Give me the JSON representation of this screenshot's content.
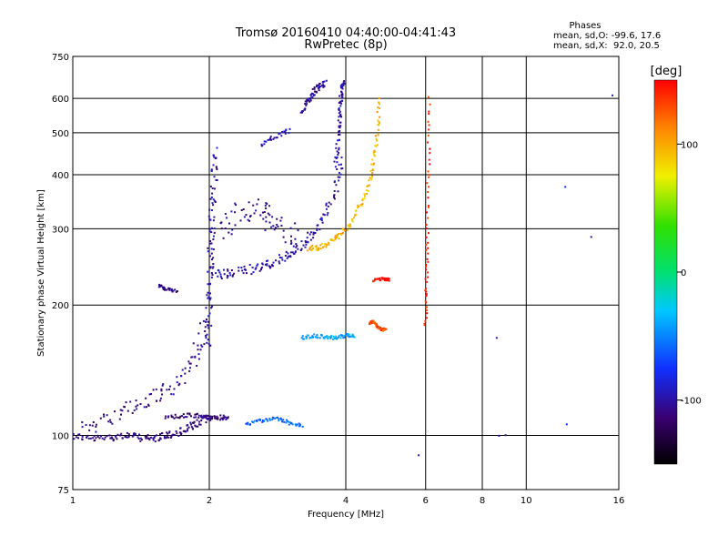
{
  "chart_data": {
    "type": "scatter",
    "title": "Tromsø 20160410 04:40:00-04:41:43",
    "subtitle": "RwPretec (8p)",
    "stats": {
      "heading": "Phases",
      "line_o": "mean, sd,O: -99.6, 17.6",
      "line_x": "mean, sd,X:  92.0, 20.5"
    },
    "xlabel": "Frequency [MHz]",
    "ylabel": "Stationary phase Virtual Height [km]",
    "x_scale": "log",
    "y_scale": "log",
    "xlim": [
      1,
      16
    ],
    "ylim": [
      75,
      750
    ],
    "x_ticks": [
      {
        "value": 1,
        "label": "1"
      },
      {
        "value": 2,
        "label": "2"
      },
      {
        "value": 4,
        "label": "4"
      },
      {
        "value": 6,
        "label": "6"
      },
      {
        "value": 8,
        "label": "8"
      },
      {
        "value": 10,
        "label": "10"
      },
      {
        "value": 16,
        "label": "16"
      }
    ],
    "y_ticks": [
      {
        "value": 75,
        "label": "75"
      },
      {
        "value": 100,
        "label": "100"
      },
      {
        "value": 200,
        "label": "200"
      },
      {
        "value": 300,
        "label": "300"
      },
      {
        "value": 400,
        "label": "400"
      },
      {
        "value": 500,
        "label": "500"
      },
      {
        "value": 600,
        "label": "600"
      },
      {
        "value": 750,
        "label": "750"
      }
    ],
    "grid": true,
    "colorbar": {
      "label": "[deg]",
      "min": -150,
      "max": 150,
      "ticks": [
        {
          "value": 100,
          "label": "100"
        },
        {
          "value": 0,
          "label": "0"
        },
        {
          "value": -100,
          "label": "-100"
        }
      ]
    },
    "traces": [
      {
        "x": [
          1.0,
          1.1,
          1.2,
          1.3,
          1.4,
          1.5,
          1.6,
          1.7,
          1.8,
          1.9,
          2.0
        ],
        "y": [
          100,
          98,
          99,
          100,
          99,
          98,
          100,
          101,
          104,
          107,
          110
        ],
        "phase": -110,
        "spread": 8
      },
      {
        "x": [
          1.05,
          1.2,
          1.35,
          1.5,
          1.65,
          1.8,
          1.9,
          2.0
        ],
        "y": [
          104,
          110,
          116,
          122,
          130,
          142,
          160,
          185
        ],
        "phase": -108,
        "spread": 18
      },
      {
        "x": [
          1.6,
          1.75,
          1.9,
          2.0,
          2.1,
          2.2
        ],
        "y": [
          110,
          111,
          111,
          110,
          110,
          110
        ],
        "phase": -110,
        "spread": 5
      },
      {
        "x": [
          1.98,
          2.0,
          2.01,
          2.02,
          2.03,
          2.05,
          2.07
        ],
        "y": [
          160,
          200,
          240,
          280,
          330,
          390,
          450
        ],
        "phase": -100,
        "spread": 12
      },
      {
        "x": [
          2.05,
          2.2,
          2.4,
          2.6,
          2.8,
          3.0,
          3.2,
          3.4,
          3.6,
          3.8,
          3.9
        ],
        "y": [
          235,
          236,
          240,
          245,
          252,
          262,
          275,
          292,
          320,
          370,
          430
        ],
        "phase": -100,
        "spread": 10
      },
      {
        "x": [
          2.1,
          2.3,
          2.5,
          2.7,
          2.9,
          3.1
        ],
        "y": [
          300,
          320,
          335,
          320,
          300,
          285
        ],
        "phase": -105,
        "spread": 25
      },
      {
        "x": [
          3.8,
          3.85,
          3.88,
          3.9,
          3.92,
          3.95
        ],
        "y": [
          420,
          480,
          540,
          590,
          630,
          650
        ],
        "phase": -100,
        "spread": 6
      },
      {
        "x": [
          3.2,
          3.3,
          3.4,
          3.5,
          3.6
        ],
        "y": [
          560,
          590,
          620,
          640,
          650
        ],
        "phase": -105,
        "spread": 6
      },
      {
        "x": [
          2.6,
          2.8,
          3.0
        ],
        "y": [
          470,
          490,
          505
        ],
        "phase": -95,
        "spread": 5
      },
      {
        "x": [
          3.3,
          3.5,
          3.7,
          3.9,
          4.1,
          4.3,
          4.5,
          4.6,
          4.7,
          4.75
        ],
        "y": [
          270,
          272,
          280,
          292,
          310,
          340,
          380,
          430,
          500,
          600
        ],
        "phase": 95,
        "spread": 6
      },
      {
        "x": [
          3.2,
          3.4,
          3.6,
          3.8,
          4.0,
          4.2
        ],
        "y": [
          168,
          170,
          169,
          168,
          170,
          169
        ],
        "phase": -40,
        "spread": 4
      },
      {
        "x": [
          4.5,
          4.6,
          4.7,
          4.8,
          4.9
        ],
        "y": [
          182,
          183,
          178,
          176,
          175
        ],
        "phase": 130,
        "spread": 3
      },
      {
        "x": [
          4.6,
          4.8,
          5.0
        ],
        "y": [
          228,
          230,
          229
        ],
        "phase": 150,
        "spread": 3
      },
      {
        "x": [
          2.4,
          2.6,
          2.8,
          3.0,
          3.2
        ],
        "y": [
          106,
          108,
          110,
          107,
          105
        ],
        "phase": -60,
        "spread": 4
      },
      {
        "x": [
          6.0,
          6.02,
          6.05,
          6.08,
          6.1
        ],
        "y": [
          180,
          220,
          280,
          400,
          600
        ],
        "phase": 140,
        "spread": 5
      },
      {
        "x": [
          1.55,
          1.6,
          1.7
        ],
        "y": [
          222,
          218,
          215
        ],
        "phase": -110,
        "spread": 3
      },
      {
        "x": [
          8.6,
          8.7,
          9.0,
          12.2,
          12.3,
          13.9,
          15.5,
          5.8
        ],
        "y": [
          168,
          100,
          100,
          375,
          106,
          288,
          610,
          90
        ],
        "phase": -90,
        "spread": 1
      }
    ]
  }
}
